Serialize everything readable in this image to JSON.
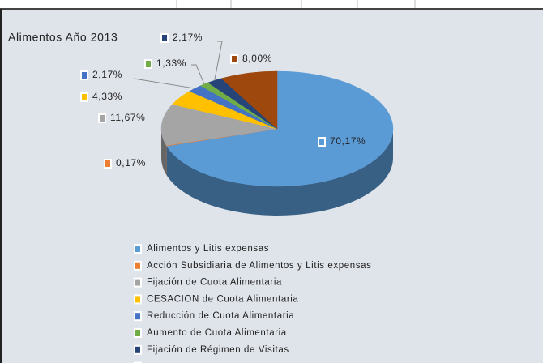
{
  "chart_data": {
    "type": "pie",
    "title": "Alimentos Año 2013",
    "categories": [
      "Alimentos y Litis expensas",
      "Acción Subsidiaria de Alimentos y Litis expensas",
      "Fijación de Cuota Alimentaria",
      "CESACION de Cuota Alimentaria",
      "Reducción de Cuota Alimentaria",
      "Aumento de Cuota Alimentaria",
      "Fijación de Régimen de Visitas",
      null
    ],
    "values": [
      70.17,
      0.17,
      11.67,
      4.33,
      2.17,
      1.33,
      2.17,
      8.0
    ],
    "value_labels": [
      "70,17%",
      "0,17%",
      "11,67%",
      "4,33%",
      "2,17%",
      "1,33%",
      "2,17%",
      "8,00%"
    ],
    "colors": [
      "#5b9bd5",
      "#ed7d31",
      "#a5a5a5",
      "#ffc000",
      "#4472c4",
      "#70ad47",
      "#264478",
      "#9e480e"
    ]
  }
}
